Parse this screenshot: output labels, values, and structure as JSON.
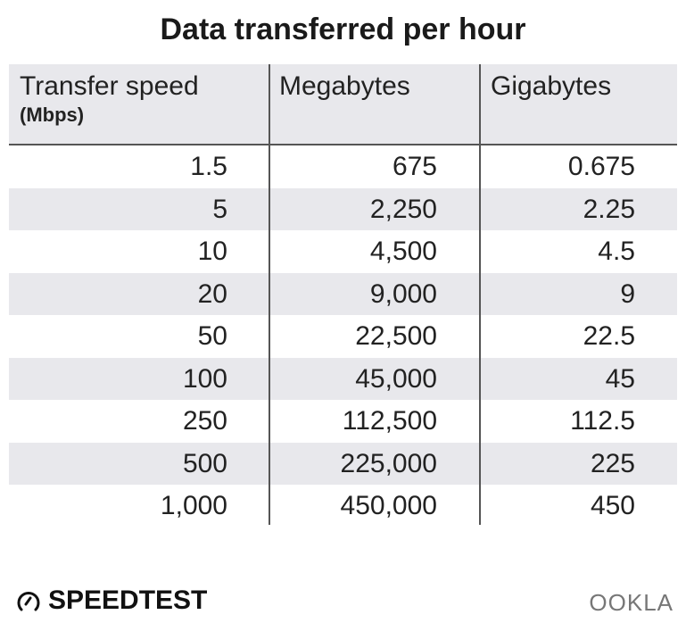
{
  "chart_data": {
    "type": "table",
    "title": "Data transferred per hour",
    "columns": [
      {
        "label": "Transfer speed",
        "sublabel": "(Mbps)"
      },
      {
        "label": "Megabytes"
      },
      {
        "label": "Gigabytes"
      }
    ],
    "rows": [
      [
        "1.5",
        "675",
        "0.675"
      ],
      [
        "5",
        "2,250",
        "2.25"
      ],
      [
        "10",
        "4,500",
        "4.5"
      ],
      [
        "20",
        "9,000",
        "9"
      ],
      [
        "50",
        "22,500",
        "22.5"
      ],
      [
        "100",
        "45,000",
        "45"
      ],
      [
        "250",
        "112,500",
        "112.5"
      ],
      [
        "500",
        "225,000",
        "225"
      ],
      [
        "1,000",
        "450,000",
        "450"
      ]
    ],
    "colors": {
      "stripe": "#e8e8ec",
      "text": "#222222",
      "divider": "#555555"
    }
  },
  "footer": {
    "brand_left": "SPEEDTEST",
    "brand_right": "OOKLA",
    "icon": "speedometer-icon"
  }
}
